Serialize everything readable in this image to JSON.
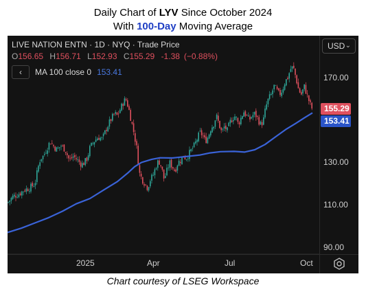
{
  "title": {
    "line1_prefix": "Daily Chart of ",
    "line1_ticker": "LYV",
    "line1_suffix": " Since October 2024",
    "line2_prefix": "With ",
    "line2_highlight": "100-Day",
    "line2_suffix": " Moving Average"
  },
  "toolbar": {
    "currency": "USD"
  },
  "legend": {
    "symbol_line": "LIVE NATION ENTN · 1D · NYQ · Trade Price",
    "open_label": "O",
    "open": "156.65",
    "high_label": "H",
    "high": "156.71",
    "low_label": "L",
    "low": "152.93",
    "close_label": "C",
    "close": "155.29",
    "change": "-1.38",
    "change_pct": "(−0.88%)",
    "ma_back": "‹",
    "ma_name": "MA 100 close 0",
    "ma_value": "153.41"
  },
  "caption": "Chart courtesy of LSEG Workspace",
  "chart_data": {
    "type": "candlestick",
    "y_ticks": [
      "170.00",
      "150.00",
      "130.00",
      "110.00",
      "90.00"
    ],
    "ylim": [
      88,
      180
    ],
    "x_ticks": [
      "2025",
      "Apr",
      "Jul",
      "Oct"
    ],
    "last_price": "155.29",
    "last_ma": "153.41",
    "colors": {
      "up": "#2fa89a",
      "down": "#e0505e",
      "ma": "#3a63d8",
      "bg": "#131313"
    },
    "price_path": [
      [
        0,
        111
      ],
      [
        8,
        114
      ],
      [
        16,
        115
      ],
      [
        24,
        117
      ],
      [
        32,
        118
      ],
      [
        40,
        120
      ],
      [
        44,
        127
      ],
      [
        48,
        132
      ],
      [
        52,
        133
      ],
      [
        58,
        137
      ],
      [
        62,
        140
      ],
      [
        66,
        138
      ],
      [
        72,
        136
      ],
      [
        78,
        138
      ],
      [
        84,
        136
      ],
      [
        90,
        131
      ],
      [
        96,
        133
      ],
      [
        102,
        131
      ],
      [
        108,
        129
      ],
      [
        112,
        130
      ],
      [
        116,
        132
      ],
      [
        120,
        137
      ],
      [
        126,
        140
      ],
      [
        132,
        142
      ],
      [
        138,
        141
      ],
      [
        144,
        146
      ],
      [
        150,
        150
      ],
      [
        156,
        153
      ],
      [
        160,
        152
      ],
      [
        164,
        155
      ],
      [
        168,
        158
      ],
      [
        172,
        160
      ],
      [
        176,
        156
      ],
      [
        180,
        150
      ],
      [
        184,
        144
      ],
      [
        188,
        137
      ],
      [
        192,
        125
      ],
      [
        196,
        122
      ],
      [
        200,
        120
      ],
      [
        204,
        118
      ],
      [
        208,
        122
      ],
      [
        212,
        124
      ],
      [
        216,
        128
      ],
      [
        220,
        131
      ],
      [
        224,
        128
      ],
      [
        228,
        122
      ],
      [
        232,
        126
      ],
      [
        236,
        130
      ],
      [
        240,
        128
      ],
      [
        244,
        126
      ],
      [
        248,
        130
      ],
      [
        252,
        131
      ],
      [
        256,
        133
      ],
      [
        260,
        132
      ],
      [
        264,
        134
      ],
      [
        268,
        136
      ],
      [
        272,
        138
      ],
      [
        276,
        141
      ],
      [
        280,
        144
      ],
      [
        284,
        143
      ],
      [
        288,
        140
      ],
      [
        292,
        142
      ],
      [
        296,
        146
      ],
      [
        300,
        148
      ],
      [
        304,
        152
      ],
      [
        308,
        148
      ],
      [
        312,
        144
      ],
      [
        316,
        147
      ],
      [
        320,
        145
      ],
      [
        324,
        149
      ],
      [
        328,
        151
      ],
      [
        332,
        152
      ],
      [
        336,
        148
      ],
      [
        340,
        151
      ],
      [
        344,
        154
      ],
      [
        348,
        152
      ],
      [
        352,
        150
      ],
      [
        356,
        152
      ],
      [
        360,
        153
      ],
      [
        364,
        151
      ],
      [
        368,
        148
      ],
      [
        372,
        149
      ],
      [
        376,
        156
      ],
      [
        380,
        160
      ],
      [
        384,
        162
      ],
      [
        388,
        166
      ],
      [
        392,
        164
      ],
      [
        396,
        162
      ],
      [
        400,
        164
      ],
      [
        404,
        168
      ],
      [
        408,
        170
      ],
      [
        412,
        174
      ],
      [
        416,
        175
      ],
      [
        420,
        170
      ],
      [
        424,
        164
      ],
      [
        428,
        162
      ],
      [
        432,
        166
      ],
      [
        436,
        162
      ],
      [
        440,
        158
      ],
      [
        444,
        155
      ]
    ],
    "ma_path": [
      [
        0,
        97
      ],
      [
        20,
        99
      ],
      [
        40,
        101.5
      ],
      [
        60,
        104
      ],
      [
        80,
        107
      ],
      [
        100,
        110.5
      ],
      [
        120,
        113
      ],
      [
        140,
        117
      ],
      [
        160,
        121
      ],
      [
        175,
        125
      ],
      [
        185,
        128
      ],
      [
        195,
        130
      ],
      [
        210,
        131.5
      ],
      [
        222,
        132.2
      ],
      [
        240,
        132.1
      ],
      [
        260,
        132.8
      ],
      [
        280,
        133.5
      ],
      [
        295,
        134.5
      ],
      [
        310,
        135.1
      ],
      [
        330,
        135.2
      ],
      [
        345,
        134.9
      ],
      [
        360,
        136
      ],
      [
        375,
        138.5
      ],
      [
        390,
        142
      ],
      [
        405,
        145.5
      ],
      [
        420,
        148.5
      ],
      [
        432,
        151
      ],
      [
        444,
        153.4
      ]
    ]
  }
}
